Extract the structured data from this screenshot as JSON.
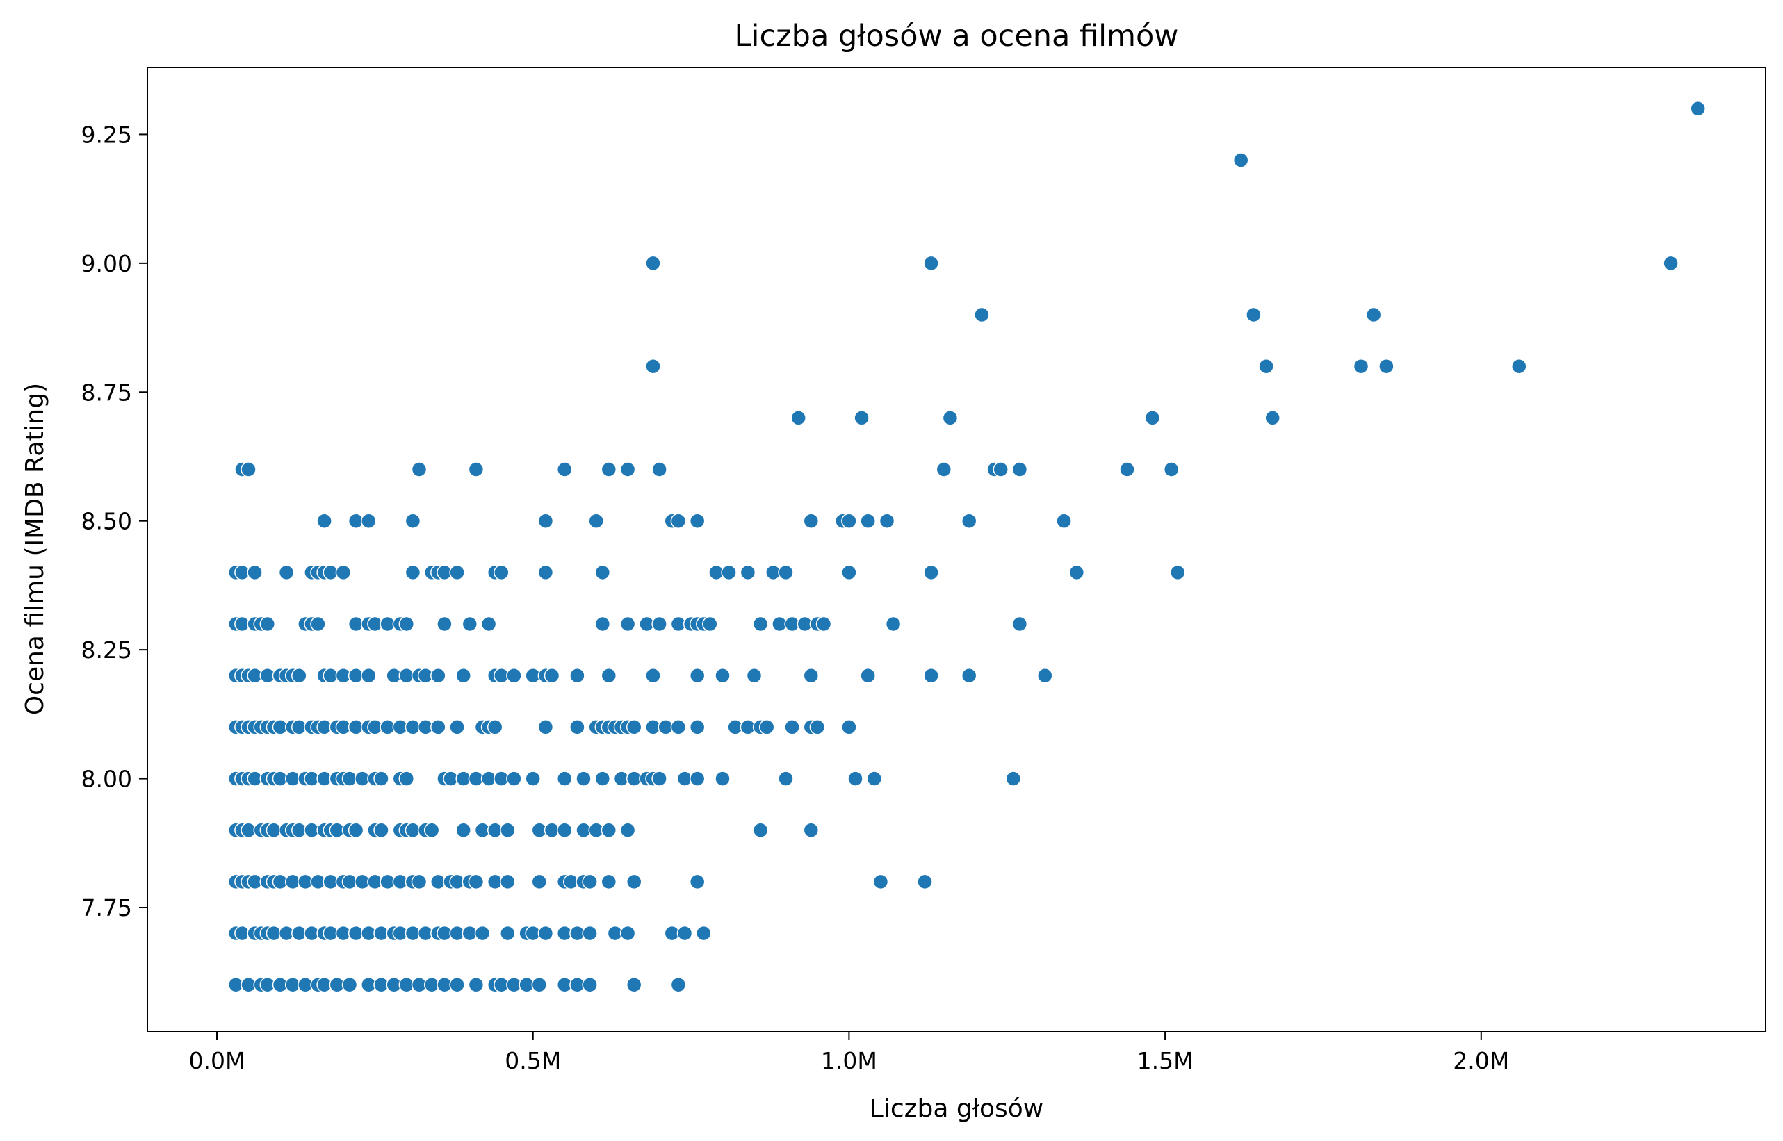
{
  "chart_data": {
    "type": "scatter",
    "title": "Liczba głosów a ocena filmów",
    "xlabel": "Liczba głosów",
    "ylabel": "Ocena filmu (IMDB Rating)",
    "xlim": [
      -0.11,
      2.45
    ],
    "ylim": [
      7.51,
      9.38
    ],
    "x_unit": "M",
    "x_ticks": [
      {
        "value": 0.0,
        "label": "0.0M"
      },
      {
        "value": 0.5,
        "label": "0.5M"
      },
      {
        "value": 1.0,
        "label": "1.0M"
      },
      {
        "value": 1.5,
        "label": "1.5M"
      },
      {
        "value": 2.0,
        "label": "2.0M"
      }
    ],
    "y_ticks": [
      {
        "value": 7.75,
        "label": "7.75"
      },
      {
        "value": 8.0,
        "label": "8.00"
      },
      {
        "value": 8.25,
        "label": "8.25"
      },
      {
        "value": 8.5,
        "label": "8.50"
      },
      {
        "value": 8.75,
        "label": "8.75"
      },
      {
        "value": 9.0,
        "label": "9.00"
      },
      {
        "value": 9.25,
        "label": "9.25"
      }
    ],
    "grid": false,
    "marker_color": "#1f77b4",
    "marker_edge_color": "#ffffff",
    "points": [
      [
        2.343,
        9.3
      ],
      [
        1.62,
        9.2
      ],
      [
        0.69,
        9.0
      ],
      [
        1.13,
        9.0
      ],
      [
        2.3,
        9.0
      ],
      [
        1.21,
        8.9
      ],
      [
        1.64,
        8.9
      ],
      [
        1.83,
        8.9
      ],
      [
        0.69,
        8.8
      ],
      [
        1.66,
        8.8
      ],
      [
        1.81,
        8.8
      ],
      [
        1.85,
        8.8
      ],
      [
        2.06,
        8.8
      ],
      [
        0.92,
        8.7
      ],
      [
        1.02,
        8.7
      ],
      [
        1.16,
        8.7
      ],
      [
        1.48,
        8.7
      ],
      [
        1.67,
        8.7
      ],
      [
        0.04,
        8.6
      ],
      [
        0.05,
        8.6
      ],
      [
        0.32,
        8.6
      ],
      [
        0.41,
        8.6
      ],
      [
        0.55,
        8.6
      ],
      [
        0.62,
        8.6
      ],
      [
        0.65,
        8.6
      ],
      [
        0.7,
        8.6
      ],
      [
        1.15,
        8.6
      ],
      [
        1.23,
        8.6
      ],
      [
        1.24,
        8.6
      ],
      [
        1.27,
        8.6
      ],
      [
        1.44,
        8.6
      ],
      [
        1.51,
        8.6
      ],
      [
        0.17,
        8.5
      ],
      [
        0.22,
        8.5
      ],
      [
        0.24,
        8.5
      ],
      [
        0.31,
        8.5
      ],
      [
        0.52,
        8.5
      ],
      [
        0.6,
        8.5
      ],
      [
        0.72,
        8.5
      ],
      [
        0.73,
        8.5
      ],
      [
        0.76,
        8.5
      ],
      [
        0.94,
        8.5
      ],
      [
        0.99,
        8.5
      ],
      [
        1.0,
        8.5
      ],
      [
        1.03,
        8.5
      ],
      [
        1.06,
        8.5
      ],
      [
        1.19,
        8.5
      ],
      [
        1.34,
        8.5
      ],
      [
        0.03,
        8.4
      ],
      [
        0.04,
        8.4
      ],
      [
        0.06,
        8.4
      ],
      [
        0.11,
        8.4
      ],
      [
        0.15,
        8.4
      ],
      [
        0.16,
        8.4
      ],
      [
        0.17,
        8.4
      ],
      [
        0.18,
        8.4
      ],
      [
        0.2,
        8.4
      ],
      [
        0.31,
        8.4
      ],
      [
        0.34,
        8.4
      ],
      [
        0.35,
        8.4
      ],
      [
        0.36,
        8.4
      ],
      [
        0.38,
        8.4
      ],
      [
        0.44,
        8.4
      ],
      [
        0.45,
        8.4
      ],
      [
        0.52,
        8.4
      ],
      [
        0.61,
        8.4
      ],
      [
        0.79,
        8.4
      ],
      [
        0.81,
        8.4
      ],
      [
        0.84,
        8.4
      ],
      [
        0.88,
        8.4
      ],
      [
        0.9,
        8.4
      ],
      [
        1.0,
        8.4
      ],
      [
        1.13,
        8.4
      ],
      [
        1.36,
        8.4
      ],
      [
        1.52,
        8.4
      ],
      [
        0.03,
        8.3
      ],
      [
        0.04,
        8.3
      ],
      [
        0.06,
        8.3
      ],
      [
        0.07,
        8.3
      ],
      [
        0.08,
        8.3
      ],
      [
        0.14,
        8.3
      ],
      [
        0.15,
        8.3
      ],
      [
        0.16,
        8.3
      ],
      [
        0.22,
        8.3
      ],
      [
        0.24,
        8.3
      ],
      [
        0.25,
        8.3
      ],
      [
        0.27,
        8.3
      ],
      [
        0.29,
        8.3
      ],
      [
        0.3,
        8.3
      ],
      [
        0.36,
        8.3
      ],
      [
        0.4,
        8.3
      ],
      [
        0.43,
        8.3
      ],
      [
        0.61,
        8.3
      ],
      [
        0.65,
        8.3
      ],
      [
        0.68,
        8.3
      ],
      [
        0.7,
        8.3
      ],
      [
        0.73,
        8.3
      ],
      [
        0.75,
        8.3
      ],
      [
        0.76,
        8.3
      ],
      [
        0.77,
        8.3
      ],
      [
        0.78,
        8.3
      ],
      [
        0.86,
        8.3
      ],
      [
        0.89,
        8.3
      ],
      [
        0.91,
        8.3
      ],
      [
        0.93,
        8.3
      ],
      [
        0.95,
        8.3
      ],
      [
        0.96,
        8.3
      ],
      [
        1.07,
        8.3
      ],
      [
        1.27,
        8.3
      ],
      [
        0.03,
        8.2
      ],
      [
        0.04,
        8.2
      ],
      [
        0.05,
        8.2
      ],
      [
        0.06,
        8.2
      ],
      [
        0.08,
        8.2
      ],
      [
        0.1,
        8.2
      ],
      [
        0.11,
        8.2
      ],
      [
        0.12,
        8.2
      ],
      [
        0.13,
        8.2
      ],
      [
        0.17,
        8.2
      ],
      [
        0.18,
        8.2
      ],
      [
        0.2,
        8.2
      ],
      [
        0.22,
        8.2
      ],
      [
        0.24,
        8.2
      ],
      [
        0.28,
        8.2
      ],
      [
        0.3,
        8.2
      ],
      [
        0.32,
        8.2
      ],
      [
        0.33,
        8.2
      ],
      [
        0.35,
        8.2
      ],
      [
        0.39,
        8.2
      ],
      [
        0.44,
        8.2
      ],
      [
        0.45,
        8.2
      ],
      [
        0.47,
        8.2
      ],
      [
        0.5,
        8.2
      ],
      [
        0.52,
        8.2
      ],
      [
        0.53,
        8.2
      ],
      [
        0.57,
        8.2
      ],
      [
        0.62,
        8.2
      ],
      [
        0.69,
        8.2
      ],
      [
        0.76,
        8.2
      ],
      [
        0.8,
        8.2
      ],
      [
        0.85,
        8.2
      ],
      [
        0.94,
        8.2
      ],
      [
        1.03,
        8.2
      ],
      [
        1.13,
        8.2
      ],
      [
        1.19,
        8.2
      ],
      [
        1.31,
        8.2
      ],
      [
        0.03,
        8.1
      ],
      [
        0.04,
        8.1
      ],
      [
        0.05,
        8.1
      ],
      [
        0.06,
        8.1
      ],
      [
        0.07,
        8.1
      ],
      [
        0.08,
        8.1
      ],
      [
        0.09,
        8.1
      ],
      [
        0.1,
        8.1
      ],
      [
        0.12,
        8.1
      ],
      [
        0.13,
        8.1
      ],
      [
        0.15,
        8.1
      ],
      [
        0.16,
        8.1
      ],
      [
        0.17,
        8.1
      ],
      [
        0.19,
        8.1
      ],
      [
        0.2,
        8.1
      ],
      [
        0.22,
        8.1
      ],
      [
        0.24,
        8.1
      ],
      [
        0.25,
        8.1
      ],
      [
        0.27,
        8.1
      ],
      [
        0.29,
        8.1
      ],
      [
        0.31,
        8.1
      ],
      [
        0.33,
        8.1
      ],
      [
        0.35,
        8.1
      ],
      [
        0.38,
        8.1
      ],
      [
        0.42,
        8.1
      ],
      [
        0.43,
        8.1
      ],
      [
        0.44,
        8.1
      ],
      [
        0.52,
        8.1
      ],
      [
        0.57,
        8.1
      ],
      [
        0.6,
        8.1
      ],
      [
        0.61,
        8.1
      ],
      [
        0.62,
        8.1
      ],
      [
        0.63,
        8.1
      ],
      [
        0.64,
        8.1
      ],
      [
        0.65,
        8.1
      ],
      [
        0.66,
        8.1
      ],
      [
        0.69,
        8.1
      ],
      [
        0.71,
        8.1
      ],
      [
        0.73,
        8.1
      ],
      [
        0.76,
        8.1
      ],
      [
        0.82,
        8.1
      ],
      [
        0.84,
        8.1
      ],
      [
        0.86,
        8.1
      ],
      [
        0.87,
        8.1
      ],
      [
        0.91,
        8.1
      ],
      [
        0.94,
        8.1
      ],
      [
        0.95,
        8.1
      ],
      [
        1.0,
        8.1
      ],
      [
        0.03,
        8.0
      ],
      [
        0.04,
        8.0
      ],
      [
        0.05,
        8.0
      ],
      [
        0.06,
        8.0
      ],
      [
        0.08,
        8.0
      ],
      [
        0.09,
        8.0
      ],
      [
        0.1,
        8.0
      ],
      [
        0.12,
        8.0
      ],
      [
        0.14,
        8.0
      ],
      [
        0.15,
        8.0
      ],
      [
        0.17,
        8.0
      ],
      [
        0.19,
        8.0
      ],
      [
        0.2,
        8.0
      ],
      [
        0.21,
        8.0
      ],
      [
        0.23,
        8.0
      ],
      [
        0.25,
        8.0
      ],
      [
        0.26,
        8.0
      ],
      [
        0.29,
        8.0
      ],
      [
        0.3,
        8.0
      ],
      [
        0.36,
        8.0
      ],
      [
        0.37,
        8.0
      ],
      [
        0.39,
        8.0
      ],
      [
        0.41,
        8.0
      ],
      [
        0.43,
        8.0
      ],
      [
        0.45,
        8.0
      ],
      [
        0.47,
        8.0
      ],
      [
        0.5,
        8.0
      ],
      [
        0.55,
        8.0
      ],
      [
        0.58,
        8.0
      ],
      [
        0.61,
        8.0
      ],
      [
        0.64,
        8.0
      ],
      [
        0.66,
        8.0
      ],
      [
        0.68,
        8.0
      ],
      [
        0.69,
        8.0
      ],
      [
        0.7,
        8.0
      ],
      [
        0.74,
        8.0
      ],
      [
        0.76,
        8.0
      ],
      [
        0.8,
        8.0
      ],
      [
        0.9,
        8.0
      ],
      [
        1.01,
        8.0
      ],
      [
        1.04,
        8.0
      ],
      [
        1.26,
        8.0
      ],
      [
        0.03,
        7.9
      ],
      [
        0.04,
        7.9
      ],
      [
        0.05,
        7.9
      ],
      [
        0.07,
        7.9
      ],
      [
        0.08,
        7.9
      ],
      [
        0.09,
        7.9
      ],
      [
        0.11,
        7.9
      ],
      [
        0.12,
        7.9
      ],
      [
        0.13,
        7.9
      ],
      [
        0.15,
        7.9
      ],
      [
        0.17,
        7.9
      ],
      [
        0.18,
        7.9
      ],
      [
        0.19,
        7.9
      ],
      [
        0.21,
        7.9
      ],
      [
        0.22,
        7.9
      ],
      [
        0.25,
        7.9
      ],
      [
        0.26,
        7.9
      ],
      [
        0.29,
        7.9
      ],
      [
        0.3,
        7.9
      ],
      [
        0.31,
        7.9
      ],
      [
        0.33,
        7.9
      ],
      [
        0.34,
        7.9
      ],
      [
        0.39,
        7.9
      ],
      [
        0.42,
        7.9
      ],
      [
        0.44,
        7.9
      ],
      [
        0.46,
        7.9
      ],
      [
        0.51,
        7.9
      ],
      [
        0.53,
        7.9
      ],
      [
        0.55,
        7.9
      ],
      [
        0.58,
        7.9
      ],
      [
        0.6,
        7.9
      ],
      [
        0.62,
        7.9
      ],
      [
        0.65,
        7.9
      ],
      [
        0.86,
        7.9
      ],
      [
        0.94,
        7.9
      ],
      [
        0.03,
        7.8
      ],
      [
        0.04,
        7.8
      ],
      [
        0.05,
        7.8
      ],
      [
        0.06,
        7.8
      ],
      [
        0.08,
        7.8
      ],
      [
        0.09,
        7.8
      ],
      [
        0.1,
        7.8
      ],
      [
        0.12,
        7.8
      ],
      [
        0.14,
        7.8
      ],
      [
        0.16,
        7.8
      ],
      [
        0.18,
        7.8
      ],
      [
        0.2,
        7.8
      ],
      [
        0.21,
        7.8
      ],
      [
        0.23,
        7.8
      ],
      [
        0.25,
        7.8
      ],
      [
        0.27,
        7.8
      ],
      [
        0.29,
        7.8
      ],
      [
        0.31,
        7.8
      ],
      [
        0.32,
        7.8
      ],
      [
        0.35,
        7.8
      ],
      [
        0.37,
        7.8
      ],
      [
        0.38,
        7.8
      ],
      [
        0.4,
        7.8
      ],
      [
        0.41,
        7.8
      ],
      [
        0.44,
        7.8
      ],
      [
        0.46,
        7.8
      ],
      [
        0.51,
        7.8
      ],
      [
        0.55,
        7.8
      ],
      [
        0.56,
        7.8
      ],
      [
        0.58,
        7.8
      ],
      [
        0.59,
        7.8
      ],
      [
        0.62,
        7.8
      ],
      [
        0.66,
        7.8
      ],
      [
        0.76,
        7.8
      ],
      [
        1.05,
        7.8
      ],
      [
        1.12,
        7.8
      ],
      [
        0.03,
        7.7
      ],
      [
        0.04,
        7.7
      ],
      [
        0.06,
        7.7
      ],
      [
        0.07,
        7.7
      ],
      [
        0.08,
        7.7
      ],
      [
        0.09,
        7.7
      ],
      [
        0.11,
        7.7
      ],
      [
        0.13,
        7.7
      ],
      [
        0.15,
        7.7
      ],
      [
        0.17,
        7.7
      ],
      [
        0.18,
        7.7
      ],
      [
        0.2,
        7.7
      ],
      [
        0.22,
        7.7
      ],
      [
        0.24,
        7.7
      ],
      [
        0.26,
        7.7
      ],
      [
        0.28,
        7.7
      ],
      [
        0.29,
        7.7
      ],
      [
        0.31,
        7.7
      ],
      [
        0.33,
        7.7
      ],
      [
        0.35,
        7.7
      ],
      [
        0.36,
        7.7
      ],
      [
        0.38,
        7.7
      ],
      [
        0.4,
        7.7
      ],
      [
        0.42,
        7.7
      ],
      [
        0.46,
        7.7
      ],
      [
        0.49,
        7.7
      ],
      [
        0.5,
        7.7
      ],
      [
        0.52,
        7.7
      ],
      [
        0.55,
        7.7
      ],
      [
        0.57,
        7.7
      ],
      [
        0.59,
        7.7
      ],
      [
        0.63,
        7.7
      ],
      [
        0.65,
        7.7
      ],
      [
        0.72,
        7.7
      ],
      [
        0.74,
        7.7
      ],
      [
        0.77,
        7.7
      ],
      [
        0.03,
        7.6
      ],
      [
        0.05,
        7.6
      ],
      [
        0.07,
        7.6
      ],
      [
        0.08,
        7.6
      ],
      [
        0.1,
        7.6
      ],
      [
        0.12,
        7.6
      ],
      [
        0.14,
        7.6
      ],
      [
        0.16,
        7.6
      ],
      [
        0.17,
        7.6
      ],
      [
        0.19,
        7.6
      ],
      [
        0.21,
        7.6
      ],
      [
        0.24,
        7.6
      ],
      [
        0.26,
        7.6
      ],
      [
        0.28,
        7.6
      ],
      [
        0.3,
        7.6
      ],
      [
        0.32,
        7.6
      ],
      [
        0.34,
        7.6
      ],
      [
        0.36,
        7.6
      ],
      [
        0.38,
        7.6
      ],
      [
        0.41,
        7.6
      ],
      [
        0.44,
        7.6
      ],
      [
        0.45,
        7.6
      ],
      [
        0.47,
        7.6
      ],
      [
        0.49,
        7.6
      ],
      [
        0.51,
        7.6
      ],
      [
        0.55,
        7.6
      ],
      [
        0.57,
        7.6
      ],
      [
        0.59,
        7.6
      ],
      [
        0.66,
        7.6
      ],
      [
        0.73,
        7.6
      ]
    ]
  }
}
